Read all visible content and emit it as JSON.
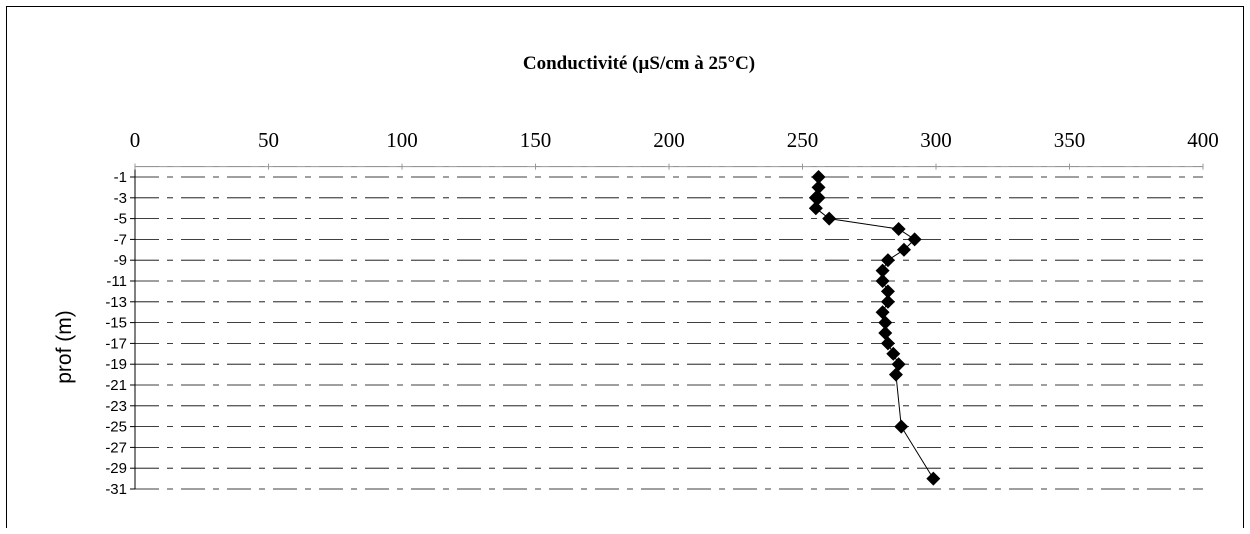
{
  "chart_data": {
    "type": "scatter",
    "title": "Conductivité (µS/cm à 25°C)",
    "xlabel": "",
    "ylabel": "prof (m)",
    "xlim": [
      0,
      400
    ],
    "ylim": [
      -31,
      -1
    ],
    "x_axis_position": "top",
    "x_ticks": [
      0,
      50,
      100,
      150,
      200,
      250,
      300,
      350,
      400
    ],
    "y_ticks": [
      -1,
      -3,
      -5,
      -7,
      -9,
      -11,
      -13,
      -15,
      -17,
      -19,
      -21,
      -23,
      -25,
      -27,
      -29,
      -31
    ],
    "grid": "horizontal dashed",
    "legend": "none",
    "marker": "diamond",
    "line": "solid connecting points",
    "color": "#000000",
    "series": [
      {
        "x": [
          256,
          256,
          256,
          255,
          255,
          260,
          286,
          292,
          288,
          282,
          280,
          280,
          282,
          282,
          280,
          281,
          281,
          282,
          284,
          286,
          285,
          287,
          299
        ],
        "y": [
          -1,
          -2,
          -3,
          -3,
          -4,
          -5,
          -6,
          -7,
          -8,
          -9,
          -10,
          -11,
          -12,
          -13,
          -14,
          -15,
          -16,
          -17,
          -18,
          -19,
          -20,
          -25,
          -30
        ]
      }
    ]
  }
}
